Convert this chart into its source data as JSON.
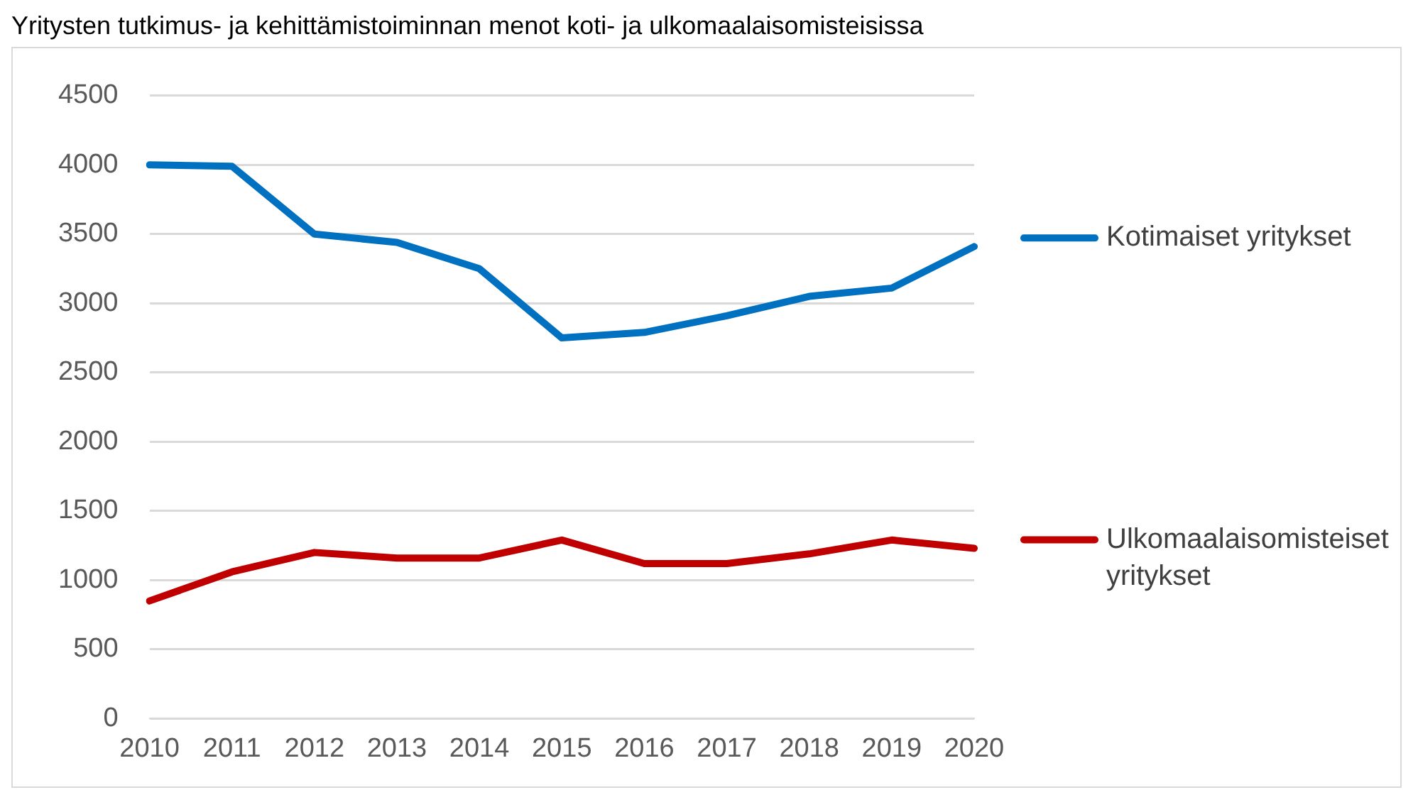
{
  "chart_data": {
    "type": "line",
    "title": "Yritysten tutkimus- ja kehittämistoiminnan menot koti- ja ulkomaalaisomisteisissa",
    "categories": [
      "2010",
      "2011",
      "2012",
      "2013",
      "2014",
      "2015",
      "2016",
      "2017",
      "2018",
      "2019",
      "2020"
    ],
    "series": [
      {
        "name": "Kotimaiset yritykset",
        "color": "#0070c0",
        "values": [
          4000,
          3990,
          3500,
          3440,
          3250,
          2750,
          2790,
          2910,
          3050,
          3110,
          3410
        ]
      },
      {
        "name": "Ulkomaalaisomisteiset yritykset",
        "color": "#c00000",
        "values": [
          850,
          1060,
          1200,
          1160,
          1160,
          1290,
          1120,
          1120,
          1190,
          1290,
          1230
        ]
      }
    ],
    "ylim": [
      0,
      4500
    ],
    "yticks": [
      0,
      500,
      1000,
      1500,
      2000,
      2500,
      3000,
      3500,
      4000,
      4500
    ],
    "grid": "y",
    "legend": "right",
    "marker": "none",
    "line_style": "solid"
  }
}
